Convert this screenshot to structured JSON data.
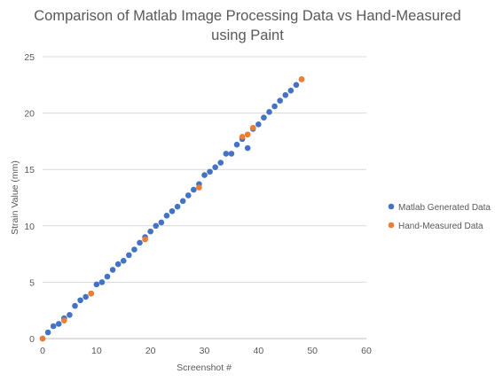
{
  "colors": {
    "matlab": "#4472C4",
    "hand": "#ED7D31",
    "grid": "#D9D9D9",
    "axis": "#BFBFBF"
  },
  "chart_data": {
    "type": "scatter",
    "title": [
      "Comparison of Matlab Image Processing Data vs Hand-Measured",
      "using Paint"
    ],
    "xlabel": "Screenshot #",
    "ylabel": "Strain Value (mm)",
    "xlim": [
      0,
      60
    ],
    "ylim": [
      0,
      25
    ],
    "xticks": [
      0,
      10,
      20,
      30,
      40,
      50,
      60
    ],
    "yticks": [
      0,
      5,
      10,
      15,
      20,
      25
    ],
    "grid": "horizontal",
    "legend": "right",
    "series": [
      {
        "name": "Matlab Generated Data",
        "x": [
          0,
          1,
          2,
          3,
          4,
          5,
          6,
          7,
          8,
          9,
          10,
          11,
          12,
          13,
          14,
          15,
          16,
          17,
          18,
          19,
          20,
          21,
          22,
          23,
          24,
          25,
          26,
          27,
          28,
          29,
          30,
          31,
          32,
          33,
          34,
          35,
          36,
          37,
          38,
          39,
          40,
          41,
          42,
          43,
          44,
          45,
          46,
          47,
          48
        ],
        "y": [
          0,
          0.55,
          1.1,
          1.3,
          1.8,
          2.1,
          2.9,
          3.4,
          3.7,
          4.0,
          4.8,
          5.0,
          5.5,
          6.1,
          6.6,
          6.9,
          7.4,
          7.9,
          8.5,
          9.0,
          9.5,
          10.0,
          10.3,
          10.9,
          11.3,
          11.7,
          12.2,
          12.7,
          13.2,
          13.7,
          14.5,
          14.8,
          15.2,
          15.6,
          16.4,
          16.4,
          17.2,
          17.7,
          16.9,
          18.6,
          19.0,
          19.6,
          20.1,
          20.6,
          21.1,
          21.6,
          22.0,
          22.5,
          23.0
        ]
      },
      {
        "name": "Hand-Measured Data",
        "x": [
          0,
          4,
          9,
          19,
          29,
          37,
          38,
          39,
          48
        ],
        "y": [
          0,
          1.6,
          4.0,
          8.8,
          13.4,
          17.9,
          18.1,
          18.7,
          23.0
        ]
      }
    ]
  }
}
